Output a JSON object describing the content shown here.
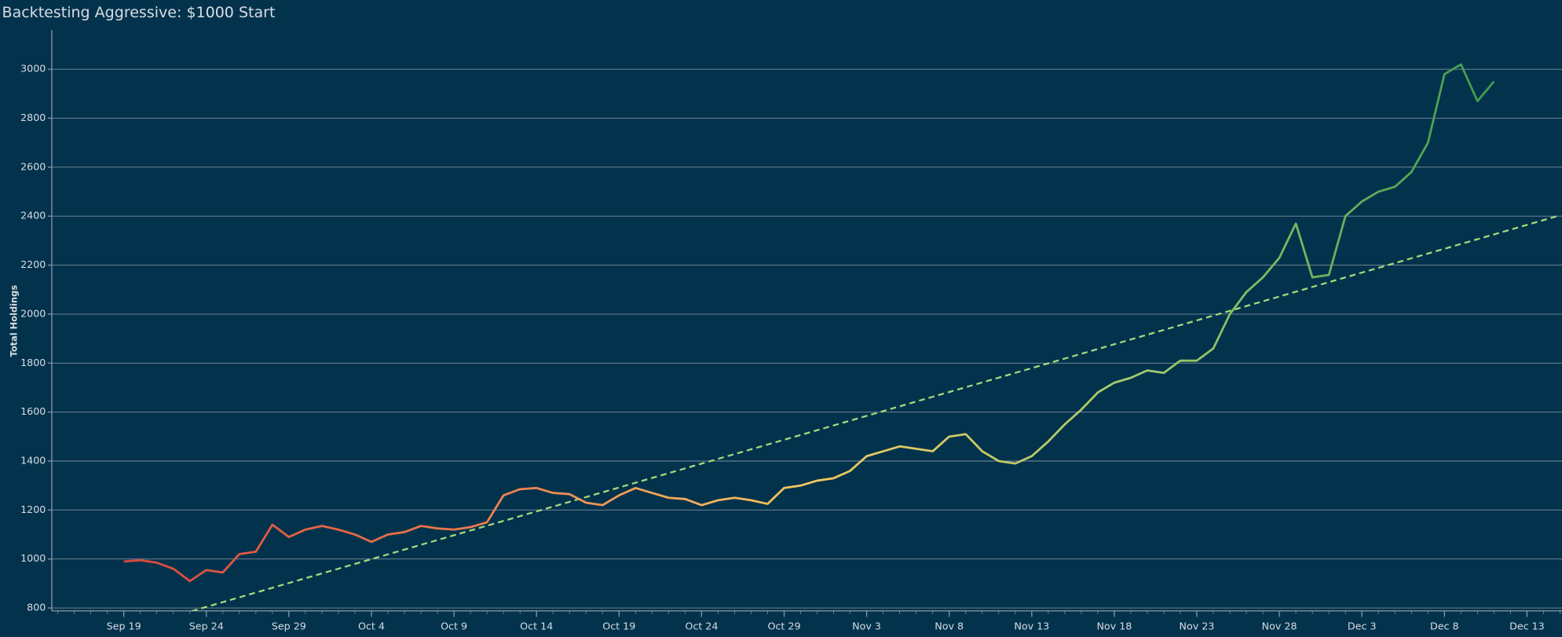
{
  "chart_data": {
    "type": "line",
    "title": "Backtesting Aggressive: $1000 Start",
    "y_label": "Total Holdings",
    "x": [
      "Sep 15",
      "Sep 16",
      "Sep 17",
      "Sep 18",
      "Sep 19",
      "Sep 20",
      "Sep 21",
      "Sep 22",
      "Sep 23",
      "Sep 24",
      "Sep 25",
      "Sep 26",
      "Sep 27",
      "Sep 28",
      "Sep 29",
      "Sep 30",
      "Oct 1",
      "Oct 2",
      "Oct 3",
      "Oct 4",
      "Oct 5",
      "Oct 6",
      "Oct 7",
      "Oct 8",
      "Oct 9",
      "Oct 10",
      "Oct 11",
      "Oct 12",
      "Oct 13",
      "Oct 14",
      "Oct 15",
      "Oct 16",
      "Oct 17",
      "Oct 18",
      "Oct 19",
      "Oct 20",
      "Oct 21",
      "Oct 22",
      "Oct 23",
      "Oct 24",
      "Oct 25",
      "Oct 26",
      "Oct 27",
      "Oct 28",
      "Oct 29",
      "Oct 30",
      "Oct 31",
      "Nov 1",
      "Nov 2",
      "Nov 3",
      "Nov 4",
      "Nov 5",
      "Nov 6",
      "Nov 7",
      "Nov 8",
      "Nov 9",
      "Nov 10",
      "Nov 11",
      "Nov 12",
      "Nov 13",
      "Nov 14",
      "Nov 15",
      "Nov 16",
      "Nov 17",
      "Nov 18",
      "Nov 19",
      "Nov 20",
      "Nov 21",
      "Nov 22",
      "Nov 23",
      "Nov 24",
      "Nov 25",
      "Nov 26",
      "Nov 27",
      "Nov 28",
      "Nov 29",
      "Nov 30",
      "Dec 1",
      "Dec 2",
      "Dec 3",
      "Dec 4",
      "Dec 5",
      "Dec 6",
      "Dec 7",
      "Dec 8",
      "Dec 9",
      "Dec 10",
      "Dec 11",
      "Dec 12",
      "Dec 13",
      "Dec 14",
      "Dec 15"
    ],
    "values": [
      null,
      null,
      null,
      null,
      990,
      995,
      985,
      960,
      910,
      955,
      945,
      1020,
      1030,
      1140,
      1090,
      1120,
      1135,
      1120,
      1100,
      1070,
      1100,
      1110,
      1135,
      1125,
      1120,
      1130,
      1150,
      1260,
      1285,
      1290,
      1270,
      1265,
      1230,
      1220,
      1260,
      1290,
      1270,
      1250,
      1245,
      1220,
      1240,
      1250,
      1240,
      1225,
      1290,
      1300,
      1320,
      1330,
      1360,
      1420,
      1440,
      1460,
      1450,
      1440,
      1500,
      1510,
      1440,
      1400,
      1390,
      1420,
      1480,
      1550,
      1610,
      1680,
      1720,
      1740,
      1770,
      1760,
      1810,
      1810,
      1860,
      2000,
      2090,
      2150,
      2230,
      2370,
      2150,
      2160,
      2400,
      2460,
      2500,
      2520,
      2580,
      2700,
      2980,
      3020,
      2870,
      2950,
      null,
      null,
      null,
      null
    ],
    "gradient_colors": [
      "#d9473d",
      "#ee7a4c",
      "#f3c860",
      "#9ecb6a",
      "#3f9a4d"
    ],
    "trend": {
      "x": [
        "Sep 15",
        "Dec 15"
      ],
      "values": [
        629,
        2403.5
      ],
      "color": "#a6d87c",
      "dashed": true
    },
    "ylim": [
      788,
      3160
    ],
    "yticks": [
      800,
      1000,
      1200,
      1400,
      1600,
      1800,
      2000,
      2200,
      2400,
      2600,
      2800,
      3000
    ],
    "xticks": [
      "Sep 19",
      "Sep 24",
      "Sep 29",
      "Oct 4",
      "Oct 9",
      "Oct 14",
      "Oct 19",
      "Oct 24",
      "Oct 29",
      "Nov 3",
      "Nov 8",
      "Nov 13",
      "Nov 18",
      "Nov 23",
      "Nov 28",
      "Dec 3",
      "Dec 8",
      "Dec 13"
    ],
    "grid": true
  }
}
